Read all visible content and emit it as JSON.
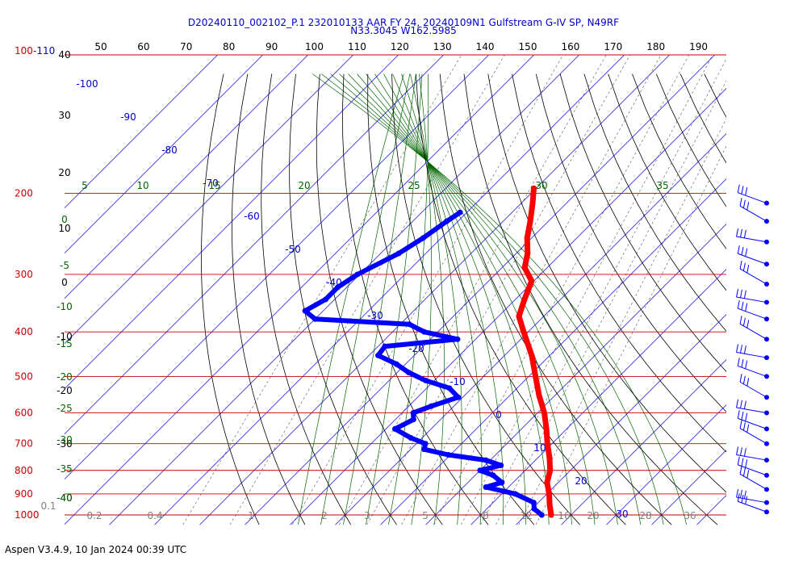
{
  "title_line1": "D20240110_002102_P.1 232010133 AAR FY 24, 20240109N1 Gulfstream G-IV SP, N49RF",
  "title_line2": "N33.3045 W162.5985",
  "footer": "Aspen V3.4.9, 10 Jan 2024  00:39 UTC",
  "colors": {
    "temperature": "#ff0000",
    "dewpoint": "#0000ff",
    "isobar": "#cc0000",
    "isotherm": "#0000cc",
    "dry_adiabat": "#000000",
    "moist_adiabat": "#006600",
    "mixing_ratio": "#808080"
  },
  "chart_data": {
    "type": "skew-t",
    "top_axis_ticks": [
      "50",
      "60",
      "70",
      "80",
      "90",
      "100",
      "110",
      "120",
      "130",
      "140",
      "150",
      "160",
      "170",
      "180",
      "190"
    ],
    "left_pressure_labels": [
      "100-110",
      "200",
      "300",
      "400",
      "500",
      "600",
      "700",
      "800",
      "900",
      "1000"
    ],
    "left_height_labels": [
      "40",
      "30",
      "20",
      "10",
      "0",
      "-10",
      "-20",
      "-30",
      "-40"
    ],
    "isotherm_labels": [
      "-100",
      "-90",
      "-80",
      "-70",
      "-60",
      "-50",
      "-40",
      "-30",
      "-20",
      "-10",
      "0",
      "10",
      "20",
      "30"
    ],
    "theta_e_labels": [
      "5",
      "10",
      "15",
      "20",
      "25",
      "30",
      "35"
    ],
    "left_green_labels": [
      "0",
      "-5",
      "-10",
      "-15",
      "-20",
      "-25",
      "-30",
      "-35",
      "-40"
    ],
    "mixing_ratio_labels": [
      "0.1",
      "0.2",
      "0.4",
      "1",
      "2",
      "3",
      "5",
      "8",
      "12",
      "16",
      "20",
      "28",
      "36",
      "40"
    ],
    "pressure_levels": [
      100,
      200,
      300,
      400,
      500,
      600,
      700,
      800,
      900,
      1000
    ],
    "temperature": [
      {
        "p": 1000,
        "t": 15.6
      },
      {
        "p": 950,
        "t": 13.0
      },
      {
        "p": 900,
        "t": 10.5
      },
      {
        "p": 850,
        "t": 7.5
      },
      {
        "p": 800,
        "t": 5.5
      },
      {
        "p": 750,
        "t": 2.5
      },
      {
        "p": 700,
        "t": -1.0
      },
      {
        "p": 650,
        "t": -4.5
      },
      {
        "p": 600,
        "t": -8.5
      },
      {
        "p": 550,
        "t": -13.5
      },
      {
        "p": 500,
        "t": -18.5
      },
      {
        "p": 450,
        "t": -24.0
      },
      {
        "p": 400,
        "t": -31.0
      },
      {
        "p": 370,
        "t": -35.5
      },
      {
        "p": 340,
        "t": -38.0
      },
      {
        "p": 310,
        "t": -40.5
      },
      {
        "p": 290,
        "t": -45.0
      },
      {
        "p": 270,
        "t": -47.5
      },
      {
        "p": 250,
        "t": -51.0
      },
      {
        "p": 230,
        "t": -54.0
      },
      {
        "p": 210,
        "t": -57.5
      },
      {
        "p": 195,
        "t": -60.5
      }
    ],
    "dewpoint": [
      {
        "p": 1000,
        "t": 13.5
      },
      {
        "p": 970,
        "t": 10.5
      },
      {
        "p": 940,
        "t": 9.0
      },
      {
        "p": 900,
        "t": 3.0
      },
      {
        "p": 870,
        "t": -5.0
      },
      {
        "p": 850,
        "t": -2.5
      },
      {
        "p": 820,
        "t": -6.0
      },
      {
        "p": 800,
        "t": -10.0
      },
      {
        "p": 780,
        "t": -6.5
      },
      {
        "p": 760,
        "t": -11.0
      },
      {
        "p": 740,
        "t": -20.5
      },
      {
        "p": 720,
        "t": -27.0
      },
      {
        "p": 700,
        "t": -28.0
      },
      {
        "p": 680,
        "t": -32.5
      },
      {
        "p": 650,
        "t": -38.0
      },
      {
        "p": 620,
        "t": -36.0
      },
      {
        "p": 600,
        "t": -37.5
      },
      {
        "p": 580,
        "t": -35.0
      },
      {
        "p": 555,
        "t": -31.0
      },
      {
        "p": 530,
        "t": -35.0
      },
      {
        "p": 510,
        "t": -42.0
      },
      {
        "p": 490,
        "t": -47.5
      },
      {
        "p": 470,
        "t": -52.0
      },
      {
        "p": 450,
        "t": -58.0
      },
      {
        "p": 430,
        "t": -58.5
      },
      {
        "p": 415,
        "t": -44.0
      },
      {
        "p": 400,
        "t": -53.0
      },
      {
        "p": 385,
        "t": -58.0
      },
      {
        "p": 375,
        "t": -80.0
      },
      {
        "p": 360,
        "t": -84.0
      },
      {
        "p": 340,
        "t": -82.0
      },
      {
        "p": 320,
        "t": -82.0
      },
      {
        "p": 300,
        "t": -80.5
      },
      {
        "p": 270,
        "t": -76.0
      },
      {
        "p": 250,
        "t": -74.0
      },
      {
        "p": 230,
        "t": -72.5
      },
      {
        "p": 220,
        "t": -71.5
      }
    ],
    "wind_barb_pressures": [
      210,
      230,
      255,
      285,
      315,
      345,
      375,
      415,
      455,
      500,
      555,
      600,
      650,
      700,
      760,
      820,
      880,
      940,
      985
    ]
  }
}
